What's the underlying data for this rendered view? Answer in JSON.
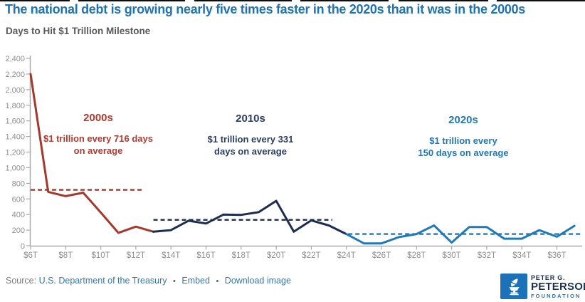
{
  "header": {
    "title": "The national debt is growing nearly five times faster in the 2020s than it was in the 2000s",
    "subtitle": "Days to Hit $1 Trillion Milestone",
    "title_color": "#1d73b5"
  },
  "chart_data": {
    "type": "line",
    "title": "The national debt is growing nearly five times faster in the 2020s than it was in the 2000s",
    "subtitle": "Days to Hit $1 Trillion Milestone",
    "xlabel": "",
    "ylabel": "Days to hit $1 trillion milestone",
    "grid": false,
    "x_axis": {
      "tick_values": [
        6,
        8,
        10,
        12,
        14,
        16,
        18,
        20,
        22,
        24,
        26,
        28,
        30,
        32,
        34,
        36
      ],
      "tick_labels": [
        "$6T",
        "$8T",
        "$10T",
        "$12T",
        "$14T",
        "$16T",
        "$18T",
        "$20T",
        "$22T",
        "$24T",
        "$26T",
        "$28T",
        "$30T",
        "$32T",
        "$34T",
        "$36T"
      ],
      "range": [
        6,
        37.4
      ]
    },
    "y_axis": {
      "min": 0,
      "max": 2400,
      "step": 200,
      "tick_labels": [
        "0",
        "200",
        "400",
        "600",
        "800",
        "1,000",
        "1,200",
        "1,400",
        "1,600",
        "1,800",
        "2,000",
        "2,200",
        "2,400"
      ]
    },
    "axis_line_color": "#a9a9a9",
    "axis_label_color": "#8f8f8f",
    "series": [
      {
        "name": "2000s",
        "color": "#a5382c",
        "text_color": "#b03a2e",
        "average_days": 716,
        "average_span": [
          6,
          12.4
        ],
        "annotation": {
          "heading": "2000s",
          "line1": "$1 trillion every 716 days",
          "line2": "on average"
        },
        "points": [
          [
            6,
            2200
          ],
          [
            7,
            690
          ],
          [
            8,
            635
          ],
          [
            9,
            680
          ],
          [
            10,
            425
          ],
          [
            11,
            165
          ],
          [
            12,
            245
          ],
          [
            13,
            180
          ]
        ]
      },
      {
        "name": "2010s",
        "color": "#1d2d50",
        "text_color": "#2c3e63",
        "average_days": 331,
        "average_span": [
          13,
          23.2
        ],
        "annotation": {
          "heading": "2010s",
          "line1": "$1 trillion every 331",
          "line2": "days on average"
        },
        "points": [
          [
            13,
            180
          ],
          [
            14,
            200
          ],
          [
            15,
            320
          ],
          [
            16,
            285
          ],
          [
            17,
            400
          ],
          [
            18,
            395
          ],
          [
            19,
            430
          ],
          [
            20,
            575
          ],
          [
            21,
            180
          ],
          [
            22,
            325
          ],
          [
            23,
            260
          ],
          [
            24,
            150
          ]
        ]
      },
      {
        "name": "2020s",
        "color": "#2279b8",
        "text_color": "#2277b5",
        "average_days": 150,
        "average_span": [
          24.1,
          37.4
        ],
        "annotation": {
          "heading": "2020s",
          "line1": "$1 trillion every",
          "line2": "150 days on average"
        },
        "points": [
          [
            24,
            150
          ],
          [
            25,
            30
          ],
          [
            26,
            30
          ],
          [
            27,
            110
          ],
          [
            28,
            150
          ],
          [
            29,
            260
          ],
          [
            30,
            40
          ],
          [
            31,
            240
          ],
          [
            32,
            240
          ],
          [
            33,
            90
          ],
          [
            34,
            90
          ],
          [
            35,
            200
          ],
          [
            36,
            115
          ],
          [
            37,
            255
          ]
        ]
      }
    ]
  },
  "footer": {
    "source_prefix": "Source:",
    "source_link": "U.S. Department of the Treasury",
    "separator": "•",
    "embed_label": "Embed",
    "download_label": "Download image"
  },
  "logo": {
    "line1": "PETER G.",
    "line2": "PETERSON",
    "line3": "FOUNDATION",
    "square_color": "#1d71b8",
    "text_color": "#1b3152",
    "accent_color": "#2277b5"
  }
}
